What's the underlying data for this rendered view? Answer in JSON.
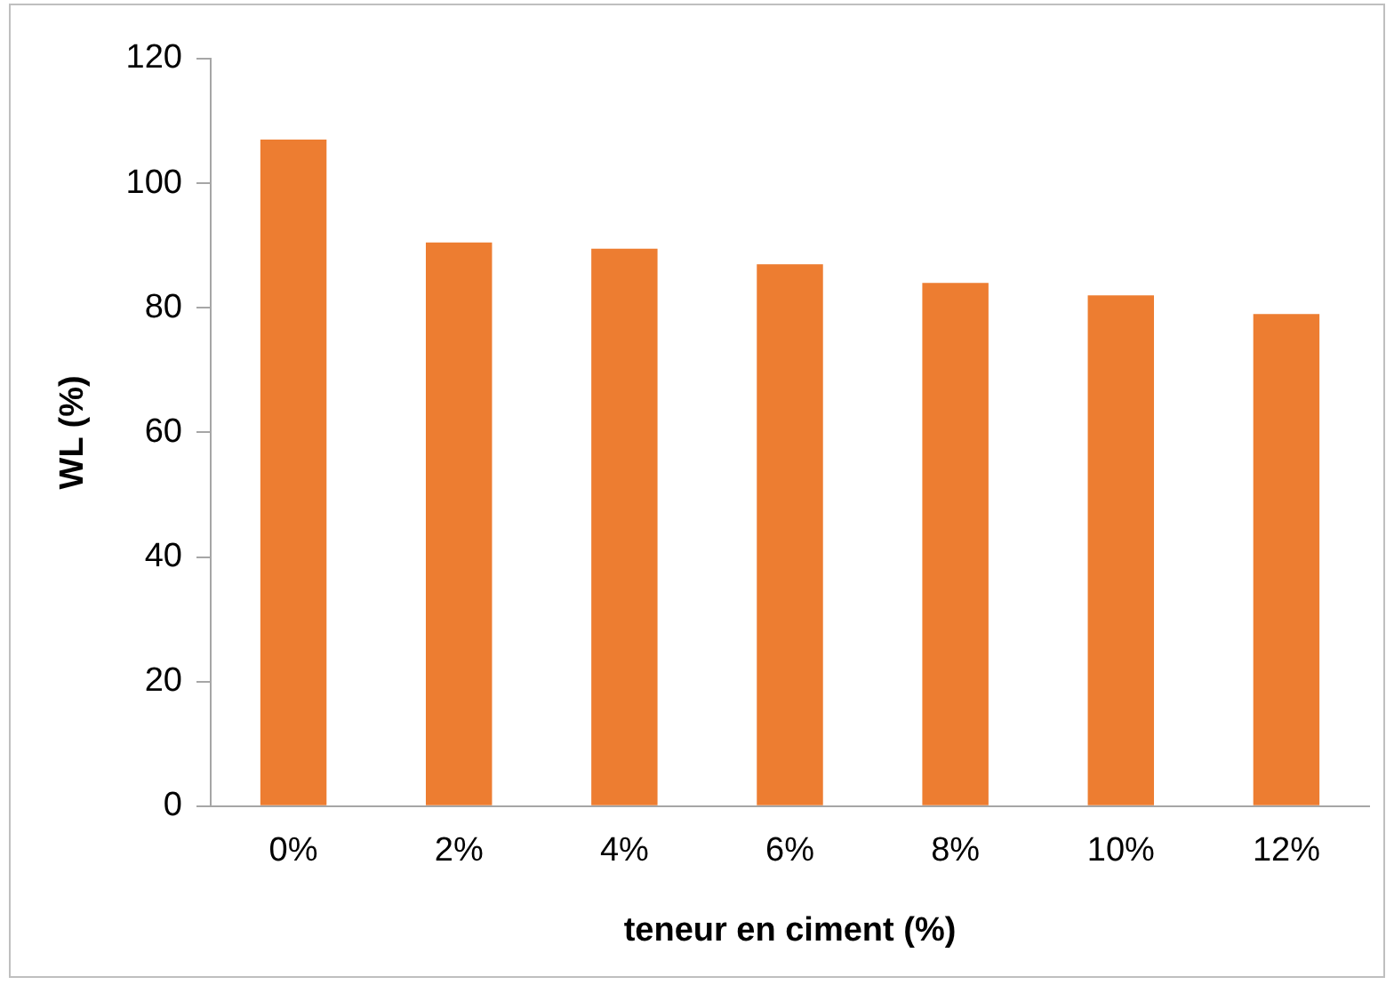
{
  "chart_data": {
    "type": "bar",
    "xlabel": "teneur en ciment (%)",
    "ylabel": "WL (%)",
    "categories": [
      "0%",
      "2%",
      "4%",
      "6%",
      "8%",
      "10%",
      "12%"
    ],
    "values": [
      107,
      90.5,
      89.5,
      87,
      84,
      82,
      79
    ],
    "color": "#ed7d31",
    "ylim": [
      0,
      120
    ],
    "yticks": [
      0,
      20,
      40,
      60,
      80,
      100,
      120
    ],
    "grid": false,
    "legend": false
  }
}
